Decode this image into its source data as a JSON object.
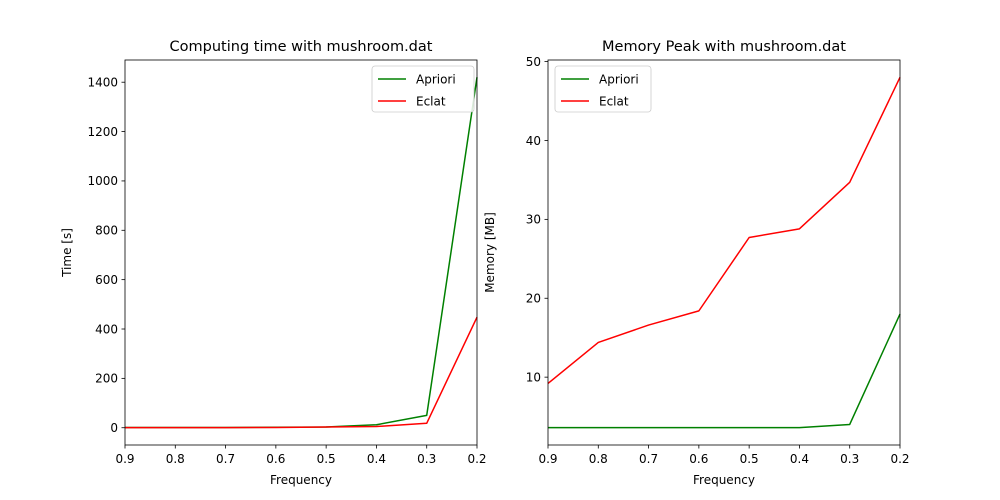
{
  "chart_data": [
    {
      "type": "line",
      "title": "Computing time with mushroom.dat",
      "xlabel": "Frequency",
      "ylabel": "Time [s]",
      "x": [
        0.9,
        0.8,
        0.7,
        0.6,
        0.5,
        0.4,
        0.3,
        0.2
      ],
      "xlim": [
        0.9,
        0.2
      ],
      "ylim": [
        -70,
        1490
      ],
      "xticks": [
        "0.9",
        "0.8",
        "0.7",
        "0.6",
        "0.5",
        "0.4",
        "0.3",
        "0.2"
      ],
      "yticks": [
        "0",
        "200",
        "400",
        "600",
        "800",
        "1000",
        "1200",
        "1400"
      ],
      "grid": false,
      "legend": "top-right",
      "series": [
        {
          "name": "Apriori",
          "color": "#008000",
          "values": [
            1,
            1,
            1,
            2,
            3,
            12,
            50,
            1420
          ]
        },
        {
          "name": "Eclat",
          "color": "#ff0000",
          "values": [
            0.5,
            0.5,
            0.5,
            1,
            3,
            5,
            18,
            448
          ]
        }
      ]
    },
    {
      "type": "line",
      "title": "Memory Peak with mushroom.dat",
      "xlabel": "Frequency",
      "ylabel": "Memory [MB]",
      "x": [
        0.9,
        0.8,
        0.7,
        0.6,
        0.5,
        0.4,
        0.3,
        0.2
      ],
      "xlim": [
        0.9,
        0.2
      ],
      "ylim": [
        1.4,
        50.2
      ],
      "xticks": [
        "0.9",
        "0.8",
        "0.7",
        "0.6",
        "0.5",
        "0.4",
        "0.3",
        "0.2"
      ],
      "yticks": [
        "10",
        "20",
        "30",
        "40",
        "50"
      ],
      "grid": false,
      "legend": "top-left",
      "series": [
        {
          "name": "Apriori",
          "color": "#008000",
          "values": [
            3.6,
            3.6,
            3.6,
            3.6,
            3.6,
            3.6,
            4.0,
            18
          ]
        },
        {
          "name": "Eclat",
          "color": "#ff0000",
          "values": [
            9.2,
            14.4,
            16.6,
            18.4,
            27.7,
            28.8,
            34.7,
            48
          ]
        }
      ]
    }
  ]
}
